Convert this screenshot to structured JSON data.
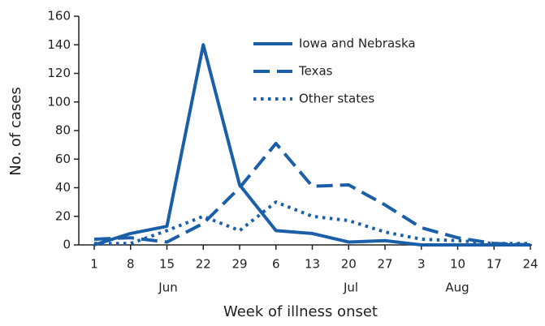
{
  "chart_data": {
    "type": "line",
    "x_label": "Week of illness onset",
    "y_label": "No. of cases",
    "categories": [
      "1",
      "8",
      "15",
      "22",
      "29",
      "6",
      "13",
      "20",
      "27",
      "3",
      "10",
      "17",
      "24"
    ],
    "months": [
      "Jun",
      "Jul",
      "Aug"
    ],
    "series": [
      {
        "name": "Iowa and Nebraska",
        "color": "#1a5fa8",
        "style": "solid",
        "values": [
          0,
          8,
          13,
          140,
          42,
          10,
          8,
          2,
          3,
          0,
          0,
          0,
          0
        ]
      },
      {
        "name": "Texas",
        "color": "#1a5fa8",
        "style": "dashed",
        "values": [
          4,
          5,
          2,
          15,
          40,
          71,
          41,
          42,
          28,
          12,
          5,
          1,
          0
        ]
      },
      {
        "name": "Other states",
        "color": "#1a5fa8",
        "style": "dotted",
        "values": [
          1,
          1,
          10,
          20,
          10,
          30,
          20,
          17,
          9,
          4,
          3,
          1,
          1
        ]
      }
    ],
    "ylim": [
      0,
      160
    ],
    "yticks": [
      0,
      20,
      40,
      60,
      80,
      100,
      120,
      140,
      160
    ],
    "grid": false,
    "legend": "upper right"
  }
}
